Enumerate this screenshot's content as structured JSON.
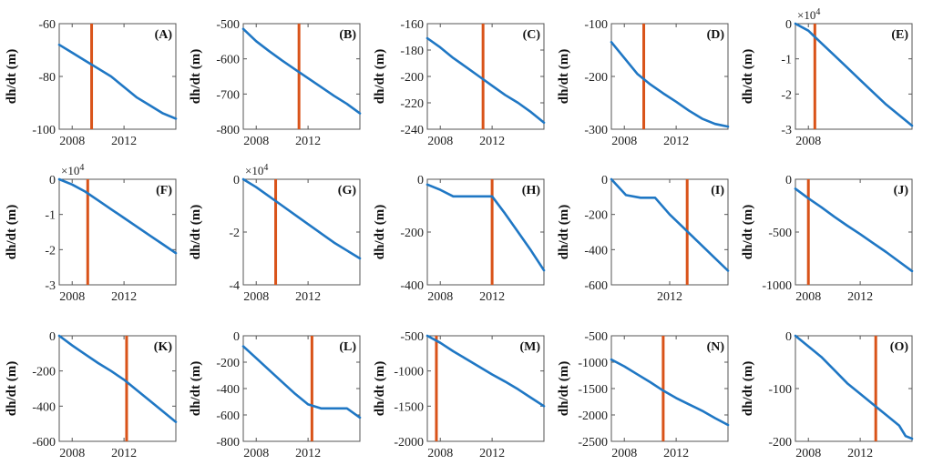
{
  "style": {
    "series_color": "#1f77c4",
    "marker_color": "#d95319",
    "axis_color": "#555555"
  },
  "ylabel": "dh/dt (m)",
  "chart_data": [
    {
      "type": "line",
      "panel": "(A)",
      "xlim": [
        2007,
        2016
      ],
      "ylim": [
        -100,
        -60
      ],
      "yticks": [
        -60,
        -80,
        -100
      ],
      "ytick_labels": [
        "-60",
        "-80",
        "-100"
      ],
      "xticks": [
        2008,
        2012
      ],
      "multiplier": "",
      "marker_x": 2009.5,
      "x": [
        2007,
        2008,
        2009,
        2010,
        2011,
        2012,
        2013,
        2014,
        2015,
        2016
      ],
      "y": [
        -68,
        -71,
        -74,
        -77,
        -80,
        -84,
        -88,
        -91,
        -94,
        -96
      ]
    },
    {
      "type": "line",
      "panel": "(B)",
      "xlim": [
        2007,
        2016
      ],
      "ylim": [
        -800,
        -500
      ],
      "yticks": [
        -500,
        -600,
        -700,
        -800
      ],
      "ytick_labels": [
        "-500",
        "-600",
        "-700",
        "-800"
      ],
      "xticks": [
        2008,
        2012
      ],
      "multiplier": "",
      "marker_x": 2011.3,
      "x": [
        2007,
        2008,
        2009,
        2010,
        2011,
        2012,
        2013,
        2014,
        2015,
        2016
      ],
      "y": [
        -515,
        -550,
        -578,
        -605,
        -630,
        -655,
        -680,
        -705,
        -728,
        -755
      ]
    },
    {
      "type": "line",
      "panel": "(C)",
      "xlim": [
        2007,
        2016
      ],
      "ylim": [
        -240,
        -160
      ],
      "yticks": [
        -160,
        -180,
        -200,
        -220,
        -240
      ],
      "ytick_labels": [
        "-160",
        "-180",
        "-200",
        "-220",
        "-240"
      ],
      "xticks": [
        2008,
        2012
      ],
      "multiplier": "",
      "marker_x": 2011.3,
      "x": [
        2007,
        2008,
        2009,
        2010,
        2011,
        2012,
        2013,
        2014,
        2015,
        2016
      ],
      "y": [
        -171,
        -178,
        -186,
        -193,
        -200,
        -207,
        -214,
        -220,
        -227,
        -235
      ]
    },
    {
      "type": "line",
      "panel": "(D)",
      "xlim": [
        2007,
        2016
      ],
      "ylim": [
        -300,
        -100
      ],
      "yticks": [
        -100,
        -200,
        -300
      ],
      "ytick_labels": [
        "-100",
        "-200",
        "-300"
      ],
      "xticks": [
        2008,
        2012
      ],
      "multiplier": "",
      "marker_x": 2009.5,
      "x": [
        2007,
        2008,
        2009,
        2010,
        2011,
        2012,
        2013,
        2014,
        2015,
        2016
      ],
      "y": [
        -135,
        -165,
        -195,
        -215,
        -232,
        -248,
        -265,
        -280,
        -290,
        -295
      ]
    },
    {
      "type": "line",
      "panel": "(E)",
      "xlim": [
        2007,
        2016
      ],
      "ylim": [
        -3,
        0
      ],
      "yticks": [
        0,
        -1,
        -2,
        -3
      ],
      "ytick_labels": [
        "0",
        "-1",
        "-2",
        "-3"
      ],
      "xticks": [
        2008
      ],
      "multiplier": "×10^4",
      "marker_x": 2008.5,
      "x": [
        2007,
        2008,
        2009,
        2010,
        2011,
        2012,
        2013,
        2014,
        2015,
        2016
      ],
      "y": [
        0,
        -0.2,
        -0.55,
        -0.9,
        -1.25,
        -1.6,
        -1.95,
        -2.3,
        -2.6,
        -2.9
      ]
    },
    {
      "type": "line",
      "panel": "(F)",
      "xlim": [
        2007,
        2016
      ],
      "ylim": [
        -3,
        0
      ],
      "yticks": [
        0,
        -1,
        -2,
        -3
      ],
      "ytick_labels": [
        "0",
        "-1",
        "-2",
        "-3"
      ],
      "xticks": [
        2008,
        2012
      ],
      "multiplier": "×10^4",
      "marker_x": 2009.2,
      "x": [
        2007,
        2008,
        2009,
        2010,
        2011,
        2012,
        2013,
        2014,
        2015,
        2016
      ],
      "y": [
        0,
        -0.15,
        -0.35,
        -0.6,
        -0.85,
        -1.1,
        -1.35,
        -1.6,
        -1.85,
        -2.1
      ]
    },
    {
      "type": "line",
      "panel": "(G)",
      "xlim": [
        2007,
        2016
      ],
      "ylim": [
        -4,
        0
      ],
      "yticks": [
        0,
        -2,
        -4
      ],
      "ytick_labels": [
        "0",
        "-2",
        "-4"
      ],
      "xticks": [
        2008,
        2012
      ],
      "multiplier": "×10^4",
      "marker_x": 2009.5,
      "x": [
        2007,
        2008,
        2009,
        2010,
        2011,
        2012,
        2013,
        2014,
        2015,
        2016
      ],
      "y": [
        0,
        -0.3,
        -0.65,
        -1.0,
        -1.35,
        -1.7,
        -2.05,
        -2.4,
        -2.7,
        -3.0
      ]
    },
    {
      "type": "line",
      "panel": "(H)",
      "xlim": [
        2007,
        2016
      ],
      "ylim": [
        -400,
        0
      ],
      "yticks": [
        0,
        -200,
        -400
      ],
      "ytick_labels": [
        "0",
        "-200",
        "-400"
      ],
      "xticks": [
        2008,
        2012
      ],
      "multiplier": "",
      "marker_x": 2012.0,
      "x": [
        2007,
        2008,
        2009,
        2010,
        2011,
        2012,
        2013,
        2014,
        2015,
        2016
      ],
      "y": [
        -20,
        -40,
        -65,
        -65,
        -65,
        -65,
        -130,
        -200,
        -270,
        -345
      ]
    },
    {
      "type": "line",
      "panel": "(I)",
      "xlim": [
        2008,
        2016
      ],
      "ylim": [
        -600,
        0
      ],
      "yticks": [
        0,
        -200,
        -400,
        -600
      ],
      "ytick_labels": [
        "0",
        "-200",
        "-400",
        "-600"
      ],
      "xticks": [
        2012
      ],
      "multiplier": "",
      "marker_x": 2013.2,
      "x": [
        2008,
        2009,
        2010,
        2011,
        2012,
        2013,
        2014,
        2015,
        2016
      ],
      "y": [
        0,
        -90,
        -105,
        -105,
        -200,
        -280,
        -360,
        -440,
        -520
      ]
    },
    {
      "type": "line",
      "panel": "(J)",
      "xlim": [
        2007,
        2016
      ],
      "ylim": [
        -1000,
        0
      ],
      "yticks": [
        0,
        -500,
        -1000
      ],
      "ytick_labels": [
        "0",
        "-500",
        "-1000"
      ],
      "xticks": [
        2008,
        2012
      ],
      "multiplier": "",
      "marker_x": 2008.0,
      "x": [
        2007,
        2008,
        2009,
        2010,
        2011,
        2012,
        2013,
        2014,
        2015,
        2016
      ],
      "y": [
        -90,
        -180,
        -265,
        -355,
        -440,
        -520,
        -605,
        -690,
        -780,
        -870
      ]
    },
    {
      "type": "line",
      "panel": "(K)",
      "xlim": [
        2007,
        2016
      ],
      "ylim": [
        -600,
        0
      ],
      "yticks": [
        0,
        -200,
        -400,
        -600
      ],
      "ytick_labels": [
        "0",
        "-200",
        "-400",
        "-600"
      ],
      "xticks": [
        2008,
        2012
      ],
      "multiplier": "",
      "marker_x": 2012.2,
      "x": [
        2007,
        2008,
        2009,
        2010,
        2011,
        2012,
        2013,
        2014,
        2015,
        2016
      ],
      "y": [
        0,
        -55,
        -105,
        -155,
        -200,
        -250,
        -310,
        -370,
        -430,
        -490
      ]
    },
    {
      "type": "line",
      "panel": "(L)",
      "xlim": [
        2007,
        2016
      ],
      "ylim": [
        -800,
        0
      ],
      "yticks": [
        0,
        -200,
        -400,
        -600,
        -800
      ],
      "ytick_labels": [
        "0",
        "-200",
        "-400",
        "-600",
        "-800"
      ],
      "xticks": [
        2008,
        2012
      ],
      "multiplier": "",
      "marker_x": 2012.3,
      "x": [
        2007,
        2008,
        2009,
        2010,
        2011,
        2012,
        2013,
        2014,
        2015,
        2016
      ],
      "y": [
        -80,
        -170,
        -260,
        -350,
        -440,
        -520,
        -550,
        -550,
        -550,
        -620
      ]
    },
    {
      "type": "line",
      "panel": "(M)",
      "xlim": [
        2007,
        2016
      ],
      "ylim": [
        -2000,
        -500
      ],
      "yticks": [
        -500,
        -1000,
        -1500,
        -2000
      ],
      "ytick_labels": [
        "-500",
        "-1000",
        "-1500",
        "-2000"
      ],
      "xticks": [
        2008,
        2012
      ],
      "multiplier": "",
      "marker_x": 2007.7,
      "x": [
        2007,
        2008,
        2009,
        2010,
        2011,
        2012,
        2013,
        2014,
        2015,
        2016
      ],
      "y": [
        -500,
        -600,
        -720,
        -830,
        -940,
        -1050,
        -1150,
        -1260,
        -1380,
        -1500
      ]
    },
    {
      "type": "line",
      "panel": "(N)",
      "xlim": [
        2007,
        2016
      ],
      "ylim": [
        -2500,
        -500
      ],
      "yticks": [
        -500,
        -1000,
        -1500,
        -2000,
        -2500
      ],
      "ytick_labels": [
        "-500",
        "-1000",
        "-1500",
        "-2000",
        "-2500"
      ],
      "xticks": [
        2008,
        2012
      ],
      "multiplier": "",
      "marker_x": 2011.0,
      "x": [
        2007,
        2008,
        2009,
        2010,
        2011,
        2012,
        2013,
        2014,
        2015,
        2016
      ],
      "y": [
        -950,
        -1080,
        -1230,
        -1380,
        -1540,
        -1680,
        -1800,
        -1920,
        -2060,
        -2190
      ]
    },
    {
      "type": "line",
      "panel": "(O)",
      "xlim": [
        2007,
        2016
      ],
      "ylim": [
        -200,
        0
      ],
      "yticks": [
        0,
        -100,
        -200
      ],
      "ytick_labels": [
        "0",
        "-100",
        "-200"
      ],
      "xticks": [
        2008,
        2012
      ],
      "multiplier": "",
      "marker_x": 2013.2,
      "x": [
        2007,
        2008,
        2009,
        2010,
        2011,
        2012,
        2013,
        2014,
        2015,
        2015.5,
        2016
      ],
      "y": [
        0,
        -20,
        -40,
        -65,
        -90,
        -110,
        -130,
        -150,
        -170,
        -190,
        -195
      ]
    }
  ]
}
